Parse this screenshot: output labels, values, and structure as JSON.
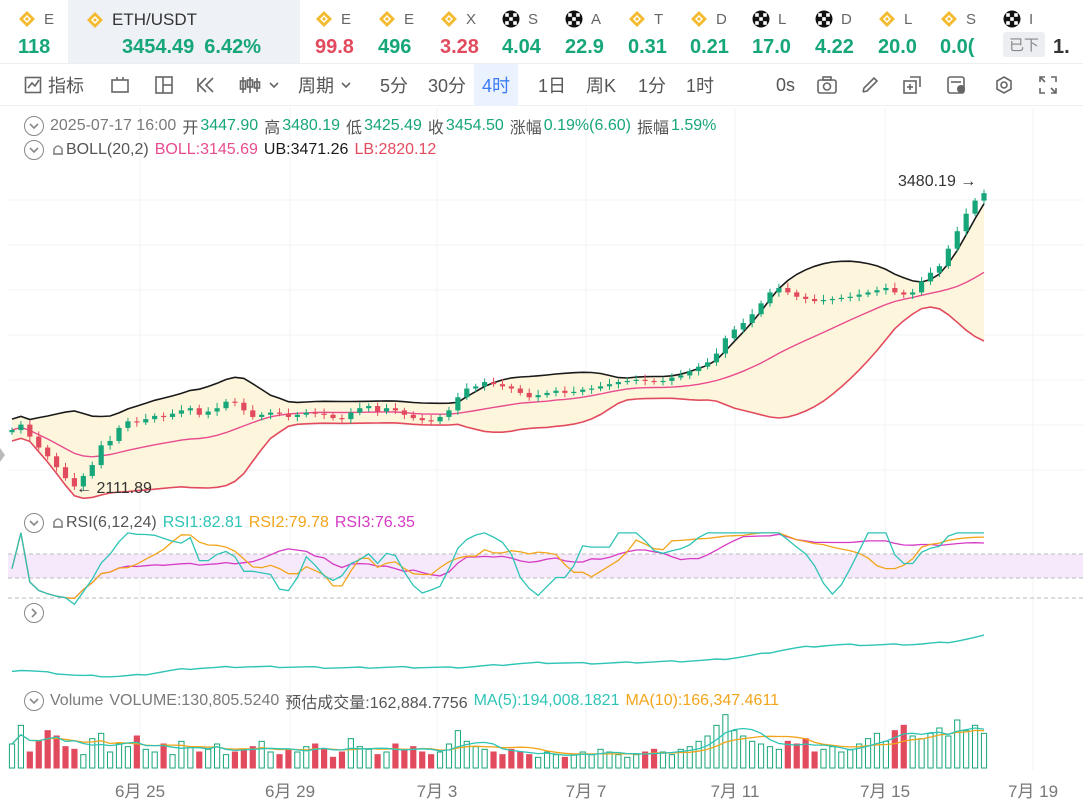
{
  "ticker": [
    {
      "label": "E",
      "value": "118",
      "color": "#16a67a",
      "icon": "binance-coin-icon"
    },
    {
      "label": "ETH/USDT",
      "price": "3454.49",
      "change": "6.42%",
      "color": "#16a67a",
      "icon": "binance-coin-icon",
      "active": true
    },
    {
      "label": "E",
      "value": "99.8",
      "color": "#e24b5e",
      "icon": "binance-coin-icon"
    },
    {
      "label": "E",
      "value": "496",
      "color": "#16a67a",
      "icon": "binance-coin-icon"
    },
    {
      "label": "X",
      "value": "3.28",
      "color": "#e24b5e",
      "icon": "binance-coin-icon"
    },
    {
      "label": "S",
      "value": "4.04",
      "color": "#16a67a",
      "icon": "okx-icon"
    },
    {
      "label": "A",
      "value": "22.9",
      "color": "#16a67a",
      "icon": "okx-icon"
    },
    {
      "label": "T",
      "value": "0.31",
      "color": "#16a67a",
      "icon": "binance-coin-icon"
    },
    {
      "label": "D",
      "value": "0.21",
      "color": "#16a67a",
      "icon": "binance-coin-icon"
    },
    {
      "label": "L",
      "value": "17.0",
      "color": "#16a67a",
      "icon": "okx-icon"
    },
    {
      "label": "D",
      "value": "4.22",
      "color": "#16a67a",
      "icon": "okx-icon"
    },
    {
      "label": "L",
      "value": "20.0",
      "color": "#16a67a",
      "icon": "binance-coin-icon"
    },
    {
      "label": "S",
      "value": "0.0(",
      "color": "#16a67a",
      "icon": "binance-coin-icon"
    },
    {
      "label": "I",
      "value": "1.",
      "color": "#333333",
      "icon": "okx-icon",
      "badge": "已下"
    }
  ],
  "toolbar": {
    "indicators": "指标",
    "period": "周期",
    "intervals": [
      "5分",
      "30分",
      "4时",
      "1日",
      "周K",
      "1分",
      "1时"
    ],
    "selected_interval": "4时",
    "countdown": "0s"
  },
  "ohlc": {
    "date": "2025-07-17 16:00",
    "open_label": "开",
    "open": "3447.90",
    "high_label": "高",
    "high": "3480.19",
    "low_label": "低",
    "low": "3425.49",
    "close_label": "收",
    "close": "3454.50",
    "change_label": "涨幅",
    "change": "0.19%(6.60)",
    "amp_label": "振幅",
    "amp": "1.59%"
  },
  "boll": {
    "label": "BOLL(20,2)",
    "boll": "BOLL:3145.69",
    "ub": "UB:3471.26",
    "lb": "LB:2820.12"
  },
  "rsi": {
    "label": "RSI(6,12,24)",
    "rsi1": "RSI1:82.81",
    "rsi2": "RSI2:79.78",
    "rsi3": "RSI3:76.35"
  },
  "volume": {
    "label": "Volume",
    "volume": "VOLUME:130,805.5240",
    "est": "预估成交量:162,884.7756",
    "ma5": "MA(5):194,008.1821",
    "ma10": "MA(10):166,347.4611"
  },
  "colors": {
    "up": "#16a67a",
    "down": "#e24b5e",
    "boll_mid": "#e84c8f",
    "ub": "#1a1a1a",
    "lb": "#e24b5e",
    "rsi1": "#2ec4b6",
    "rsi2": "#f2a51b",
    "rsi3": "#d63ac4",
    "ma5": "#2ec4b6",
    "ma10": "#f2a51b",
    "band": "#fdf6dc"
  },
  "chart_data": {
    "type": "candlestick",
    "interval": "4h",
    "x_ticks": [
      "6月 25",
      "6月 29",
      "7月 3",
      "7月 7",
      "7月 11",
      "7月 15",
      "7月 19"
    ],
    "high_marker": "3480.19",
    "low_marker": "2111.89",
    "ohlc_series": [
      2370,
      2395,
      2340,
      2290,
      2250,
      2200,
      2150,
      2112,
      2160,
      2210,
      2300,
      2320,
      2380,
      2410,
      2405,
      2420,
      2435,
      2430,
      2445,
      2460,
      2470,
      2440,
      2455,
      2470,
      2500,
      2495,
      2460,
      2430,
      2440,
      2450,
      2445,
      2430,
      2440,
      2450,
      2445,
      2440,
      2425,
      2420,
      2450,
      2470,
      2480,
      2455,
      2470,
      2460,
      2440,
      2425,
      2415,
      2410,
      2430,
      2460,
      2520,
      2560,
      2570,
      2590,
      2580,
      2570,
      2560,
      2540,
      2520,
      2530,
      2540,
      2550,
      2540,
      2545,
      2555,
      2560,
      2570,
      2580,
      2590,
      2595,
      2600,
      2595,
      2590,
      2595,
      2610,
      2620,
      2640,
      2660,
      2680,
      2720,
      2790,
      2830,
      2860,
      2900,
      2950,
      3000,
      3020,
      3000,
      2980,
      2970,
      2960,
      2965,
      2970,
      2975,
      2980,
      2990,
      3000,
      3010,
      3020,
      3000,
      2990,
      3000,
      3050,
      3090,
      3120,
      3200,
      3280,
      3360,
      3420,
      3454
    ],
    "rsi_note": "RSI lines near 50–82",
    "volume_series": [
      90,
      160,
      60,
      100,
      140,
      120,
      80,
      70,
      50,
      110,
      130,
      60,
      90,
      80,
      120,
      70,
      60,
      90,
      50,
      100,
      80,
      60,
      70,
      90,
      50,
      60,
      70,
      80,
      100,
      60,
      50,
      70,
      60,
      80,
      90,
      70,
      40,
      60,
      110,
      80,
      70,
      50,
      60,
      90,
      70,
      80,
      60,
      50,
      60,
      90,
      140,
      100,
      80,
      70,
      60,
      50,
      70,
      60,
      50,
      40,
      60,
      50,
      40,
      50,
      60,
      50,
      70,
      60,
      50,
      40,
      50,
      60,
      70,
      60,
      50,
      70,
      80,
      100,
      120,
      160,
      200,
      140,
      120,
      100,
      90,
      80,
      70,
      100,
      90,
      110,
      60,
      70,
      80,
      60,
      70,
      90,
      110,
      130,
      100,
      140,
      160,
      120,
      110,
      130,
      150,
      120,
      180,
      140,
      160,
      130
    ]
  }
}
